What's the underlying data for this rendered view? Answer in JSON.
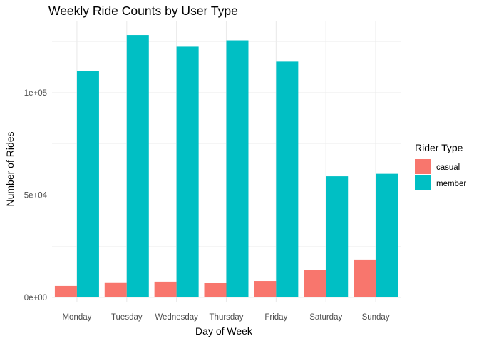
{
  "chart_data": {
    "type": "bar",
    "title": "Weekly Ride Counts by User Type",
    "xlabel": "Day of Week",
    "ylabel": "Number of Rides",
    "categories": [
      "Monday",
      "Tuesday",
      "Wednesday",
      "Thursday",
      "Friday",
      "Saturday",
      "Sunday"
    ],
    "series": [
      {
        "name": "casual",
        "color": "#F8766D",
        "values": [
          5600,
          7400,
          7700,
          7000,
          8000,
          13400,
          18500
        ]
      },
      {
        "name": "member",
        "color": "#00BFC4",
        "values": [
          110500,
          128200,
          122500,
          125600,
          115200,
          59200,
          60400
        ]
      }
    ],
    "ylim": [
      0,
      130000
    ],
    "yticks": [
      0,
      50000,
      100000
    ],
    "ytick_labels": [
      "0e+00",
      "5e+04",
      "1e+05"
    ],
    "legend": {
      "title": "Rider Type",
      "position": "right"
    },
    "grid": true
  }
}
